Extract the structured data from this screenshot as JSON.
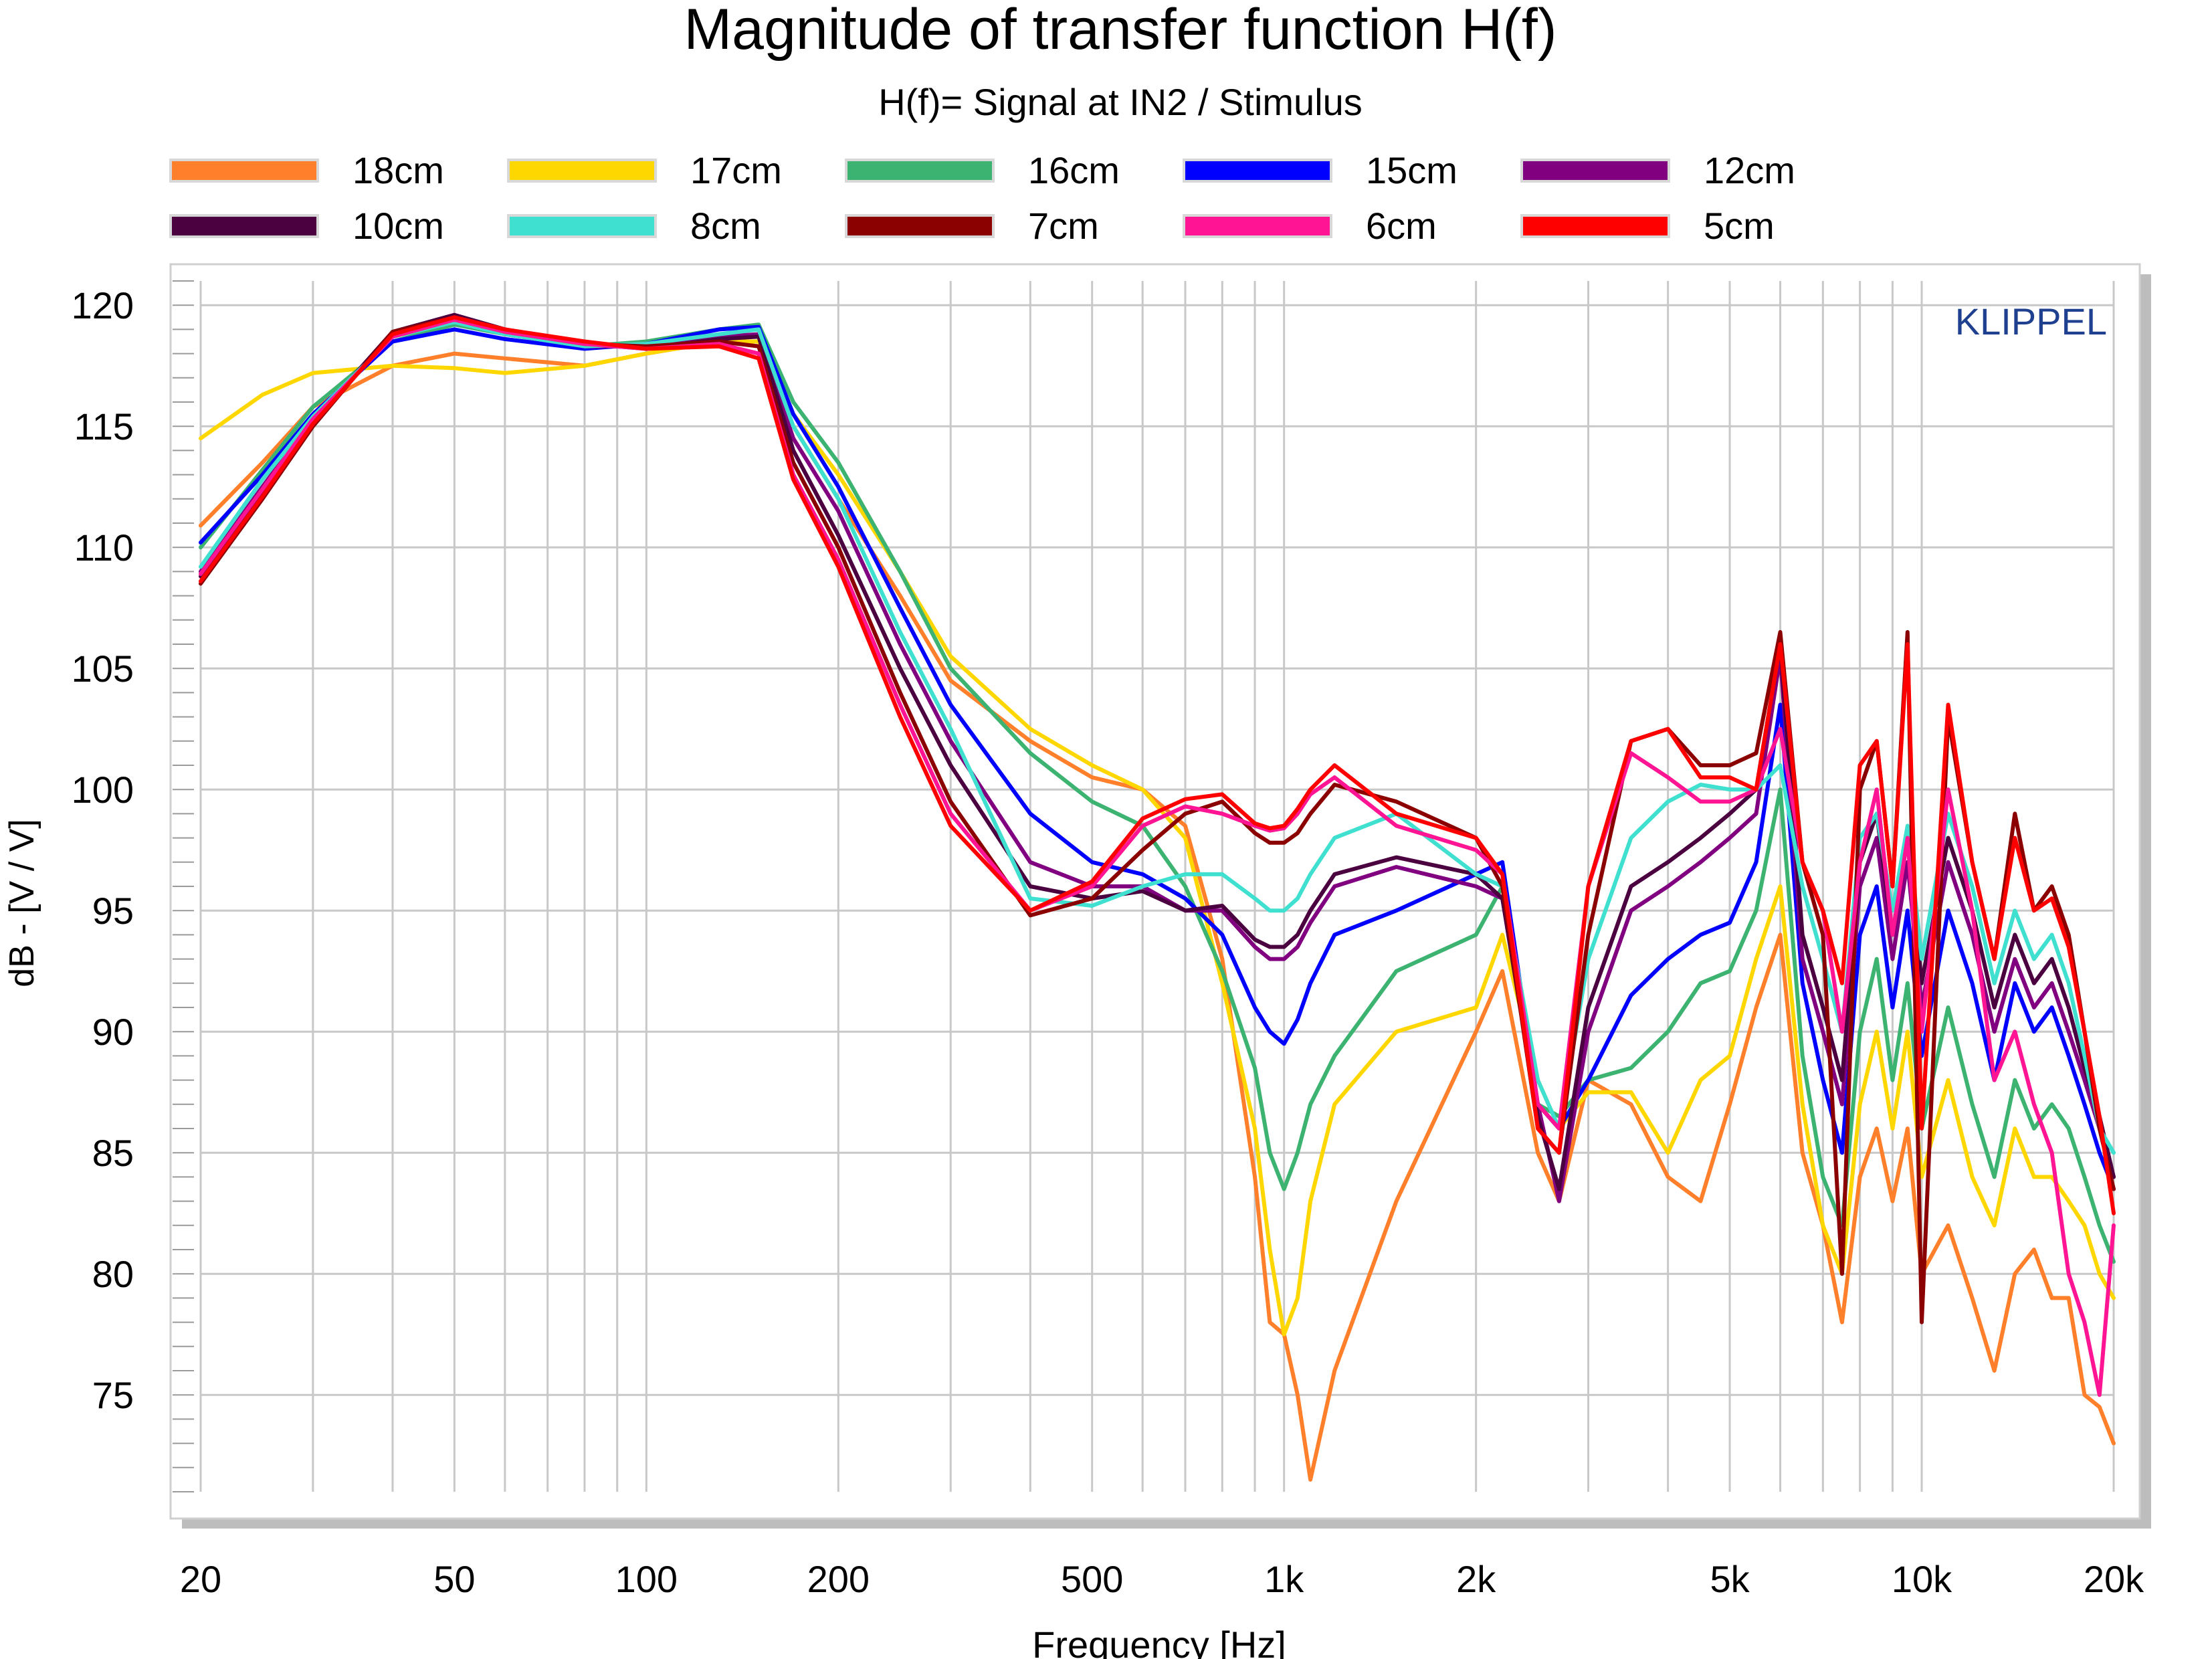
{
  "chart_data": {
    "type": "line",
    "title": "Magnitude of transfer function H(f)",
    "subtitle": "H(f)= Signal at IN2 / Stimulus",
    "watermark": "KLIPPEL",
    "xlabel": "Frequency [Hz]",
    "ylabel": "dB - [V / V]",
    "x_scale": "log",
    "xlim": [
      20,
      20000
    ],
    "ylim": [
      71,
      121
    ],
    "x_ticks": [
      20,
      50,
      100,
      200,
      500,
      1000,
      2000,
      5000,
      10000,
      20000
    ],
    "x_tick_labels": [
      "20",
      "50",
      "100",
      "200",
      "500",
      "1k",
      "2k",
      "5k",
      "10k",
      "20k"
    ],
    "y_ticks": [
      75,
      80,
      85,
      90,
      95,
      100,
      105,
      110,
      115,
      120
    ],
    "y_tick_labels": [
      "75",
      "80",
      "85",
      "90",
      "95",
      "100",
      "105",
      "110",
      "115",
      "120"
    ],
    "grid": true,
    "legend_position": "top",
    "series": [
      {
        "name": "18cm",
        "color": "#ff7f2a",
        "x": [
          20,
          25,
          30,
          40,
          50,
          60,
          80,
          100,
          130,
          150,
          170,
          200,
          250,
          300,
          400,
          500,
          600,
          700,
          800,
          900,
          950,
          1000,
          1050,
          1100,
          1200,
          1500,
          2000,
          2200,
          2500,
          2700,
          3000,
          3500,
          4000,
          4500,
          5000,
          5500,
          6000,
          6500,
          7000,
          7500,
          8000,
          8500,
          9000,
          9500,
          10000,
          11000,
          12000,
          13000,
          14000,
          15000,
          16000,
          17000,
          18000,
          19000,
          20000
        ],
        "y": [
          110.9,
          113.5,
          115.8,
          117.5,
          118.0,
          117.8,
          117.5,
          118.0,
          118.5,
          118.3,
          115.0,
          112.0,
          108.0,
          104.5,
          102.0,
          100.5,
          100.0,
          98.5,
          93.0,
          84.0,
          78.0,
          77.5,
          75.0,
          71.5,
          76.0,
          83.0,
          90.0,
          92.5,
          85.0,
          83.0,
          88.0,
          87.0,
          84.0,
          83.0,
          87.0,
          91.0,
          94.0,
          85.0,
          82.0,
          78.0,
          84.0,
          86.0,
          83.0,
          86.0,
          80.0,
          82.0,
          79.0,
          76.0,
          80.0,
          81.0,
          79.0,
          79.0,
          75.0,
          74.5,
          73.0
        ]
      },
      {
        "name": "17cm",
        "color": "#ffd700",
        "x": [
          20,
          25,
          30,
          40,
          50,
          60,
          80,
          100,
          130,
          150,
          170,
          200,
          250,
          300,
          400,
          500,
          600,
          700,
          800,
          900,
          950,
          1000,
          1050,
          1100,
          1200,
          1500,
          2000,
          2200,
          2500,
          2700,
          3000,
          3500,
          4000,
          4500,
          5000,
          5500,
          6000,
          6500,
          7000,
          7500,
          8000,
          8500,
          9000,
          9500,
          10000,
          11000,
          12000,
          13000,
          14000,
          15000,
          16000,
          17000,
          18000,
          19000,
          20000
        ],
        "y": [
          114.5,
          116.3,
          117.2,
          117.5,
          117.4,
          117.2,
          117.5,
          118.0,
          118.5,
          118.5,
          115.5,
          113.0,
          109.0,
          105.5,
          102.5,
          101.0,
          100.0,
          98.0,
          92.0,
          86.0,
          81.0,
          77.5,
          79.0,
          83.0,
          87.0,
          90.0,
          91.0,
          94.0,
          88.0,
          86.0,
          87.5,
          87.5,
          85.0,
          88.0,
          89.0,
          93.0,
          96.0,
          87.0,
          82.0,
          80.0,
          87.0,
          90.0,
          86.0,
          90.0,
          84.0,
          88.0,
          84.0,
          82.0,
          86.0,
          84.0,
          84.0,
          83.0,
          82.0,
          80.0,
          79.0
        ]
      },
      {
        "name": "16cm",
        "color": "#3cb371",
        "x": [
          20,
          25,
          30,
          40,
          50,
          60,
          80,
          100,
          130,
          150,
          170,
          200,
          250,
          300,
          400,
          500,
          600,
          700,
          800,
          900,
          950,
          1000,
          1050,
          1100,
          1200,
          1500,
          2000,
          2200,
          2500,
          2700,
          3000,
          3500,
          4000,
          4500,
          5000,
          5500,
          6000,
          6500,
          7000,
          7500,
          8000,
          8500,
          9000,
          9500,
          10000,
          11000,
          12000,
          13000,
          14000,
          15000,
          16000,
          17000,
          18000,
          19000,
          20000
        ],
        "y": [
          110.0,
          113.2,
          115.8,
          118.5,
          119.2,
          118.8,
          118.3,
          118.5,
          119.0,
          119.2,
          116.0,
          113.5,
          109.0,
          105.0,
          101.5,
          99.5,
          98.5,
          96.0,
          92.5,
          88.5,
          85.0,
          83.5,
          85.0,
          87.0,
          89.0,
          92.5,
          94.0,
          96.0,
          87.0,
          86.5,
          88.0,
          88.5,
          90.0,
          92.0,
          92.5,
          95.0,
          100.0,
          89.0,
          84.0,
          82.0,
          90.0,
          93.0,
          88.0,
          92.0,
          86.0,
          91.0,
          87.0,
          84.0,
          88.0,
          86.0,
          87.0,
          86.0,
          84.0,
          82.0,
          80.5
        ]
      },
      {
        "name": "15cm",
        "color": "#0000ff",
        "x": [
          20,
          25,
          30,
          40,
          50,
          60,
          80,
          100,
          130,
          150,
          170,
          200,
          250,
          300,
          400,
          500,
          600,
          700,
          800,
          900,
          950,
          1000,
          1050,
          1100,
          1200,
          1500,
          2000,
          2200,
          2500,
          2700,
          3000,
          3500,
          4000,
          4500,
          5000,
          5500,
          6000,
          6500,
          7000,
          7500,
          8000,
          8500,
          9000,
          9500,
          10000,
          11000,
          12000,
          13000,
          14000,
          15000,
          16000,
          17000,
          18000,
          19000,
          20000
        ],
        "y": [
          110.2,
          113.0,
          115.5,
          118.5,
          119.0,
          118.6,
          118.2,
          118.4,
          119.0,
          119.1,
          115.5,
          112.5,
          107.5,
          103.5,
          99.0,
          97.0,
          96.5,
          95.5,
          94.0,
          91.0,
          90.0,
          89.5,
          90.5,
          92.0,
          94.0,
          95.0,
          96.5,
          97.0,
          87.0,
          86.0,
          88.0,
          91.5,
          93.0,
          94.0,
          94.5,
          97.0,
          103.5,
          92.0,
          88.0,
          85.0,
          94.0,
          96.0,
          91.0,
          95.0,
          89.0,
          95.0,
          92.0,
          88.0,
          92.0,
          90.0,
          91.0,
          89.0,
          87.0,
          85.0,
          83.5
        ]
      },
      {
        "name": "12cm",
        "color": "#800080",
        "x": [
          20,
          25,
          30,
          40,
          50,
          60,
          80,
          100,
          130,
          150,
          170,
          200,
          250,
          300,
          400,
          500,
          600,
          700,
          800,
          900,
          950,
          1000,
          1050,
          1100,
          1200,
          1500,
          2000,
          2200,
          2500,
          2700,
          3000,
          3500,
          4000,
          4500,
          5000,
          5500,
          6000,
          6500,
          7000,
          7500,
          8000,
          8500,
          9000,
          9500,
          10000,
          11000,
          12000,
          13000,
          14000,
          15000,
          16000,
          17000,
          18000,
          19000,
          20000
        ],
        "y": [
          109.0,
          112.5,
          115.3,
          118.8,
          119.4,
          118.8,
          118.3,
          118.3,
          118.7,
          118.8,
          114.5,
          111.5,
          106.0,
          102.0,
          97.0,
          96.0,
          96.0,
          95.0,
          95.0,
          93.5,
          93.0,
          93.0,
          93.5,
          94.5,
          96.0,
          96.8,
          96.0,
          95.5,
          87.0,
          83.0,
          90.0,
          95.0,
          96.0,
          97.0,
          98.0,
          99.0,
          105.5,
          93.0,
          90.0,
          87.0,
          96.0,
          98.0,
          93.0,
          97.0,
          91.0,
          97.0,
          94.0,
          90.0,
          93.0,
          91.0,
          92.0,
          90.0,
          88.0,
          86.0,
          84.0
        ]
      },
      {
        "name": "10cm",
        "color": "#4b0040",
        "x": [
          20,
          25,
          30,
          40,
          50,
          60,
          80,
          100,
          130,
          150,
          170,
          200,
          250,
          300,
          400,
          500,
          600,
          700,
          800,
          900,
          950,
          1000,
          1050,
          1100,
          1200,
          1500,
          2000,
          2200,
          2500,
          2700,
          3000,
          3500,
          4000,
          4500,
          5000,
          5500,
          6000,
          6500,
          7000,
          7500,
          8000,
          8500,
          9000,
          9500,
          10000,
          11000,
          12000,
          13000,
          14000,
          15000,
          16000,
          17000,
          18000,
          19000,
          20000
        ],
        "y": [
          108.8,
          112.3,
          115.2,
          118.9,
          119.6,
          119.0,
          118.4,
          118.2,
          118.6,
          118.7,
          114.0,
          110.5,
          105.0,
          101.0,
          96.0,
          95.5,
          95.8,
          95.0,
          95.2,
          93.8,
          93.5,
          93.5,
          94.0,
          95.0,
          96.5,
          97.2,
          96.5,
          95.5,
          86.5,
          83.5,
          91.0,
          96.0,
          97.0,
          98.0,
          99.0,
          100.0,
          106.0,
          94.0,
          91.0,
          88.0,
          97.0,
          99.0,
          94.0,
          98.0,
          92.0,
          98.0,
          95.0,
          91.0,
          94.0,
          92.0,
          93.0,
          91.0,
          88.5,
          86.5,
          84.0
        ]
      },
      {
        "name": "8cm",
        "color": "#40e0d0",
        "x": [
          20,
          25,
          30,
          40,
          50,
          60,
          80,
          100,
          130,
          150,
          170,
          200,
          250,
          300,
          400,
          500,
          600,
          700,
          800,
          900,
          950,
          1000,
          1050,
          1100,
          1200,
          1500,
          2000,
          2200,
          2500,
          2700,
          3000,
          3500,
          4000,
          4500,
          5000,
          5500,
          6000,
          6500,
          7000,
          7500,
          8000,
          8500,
          9000,
          9500,
          10000,
          11000,
          12000,
          13000,
          14000,
          15000,
          16000,
          17000,
          18000,
          19000,
          20000
        ],
        "y": [
          109.2,
          112.8,
          115.4,
          118.7,
          119.3,
          118.8,
          118.3,
          118.4,
          118.8,
          119.0,
          115.0,
          112.0,
          106.5,
          102.5,
          95.5,
          95.2,
          96.0,
          96.5,
          96.5,
          95.5,
          95.0,
          95.0,
          95.5,
          96.5,
          98.0,
          99.0,
          96.5,
          96.0,
          88.0,
          86.0,
          93.0,
          98.0,
          99.5,
          100.2,
          100.0,
          100.0,
          101.0,
          96.0,
          93.0,
          90.0,
          98.0,
          99.0,
          95.0,
          98.5,
          93.0,
          99.0,
          96.0,
          92.0,
          95.0,
          93.0,
          94.0,
          92.0,
          89.0,
          86.0,
          85.0
        ]
      },
      {
        "name": "7cm",
        "color": "#8b0000",
        "x": [
          20,
          25,
          30,
          40,
          50,
          60,
          80,
          100,
          130,
          150,
          170,
          200,
          250,
          300,
          400,
          500,
          600,
          700,
          800,
          900,
          950,
          1000,
          1050,
          1100,
          1200,
          1500,
          2000,
          2200,
          2500,
          2700,
          3000,
          3500,
          4000,
          4500,
          5000,
          5500,
          6000,
          6500,
          7000,
          7500,
          8000,
          8500,
          9000,
          9500,
          10000,
          11000,
          12000,
          13000,
          14000,
          15000,
          16000,
          17000,
          18000,
          19000,
          20000
        ],
        "y": [
          108.5,
          112.0,
          115.0,
          118.9,
          119.5,
          118.9,
          118.4,
          118.3,
          118.5,
          118.3,
          113.5,
          110.0,
          104.0,
          99.5,
          94.8,
          95.5,
          97.5,
          99.0,
          99.5,
          98.2,
          97.8,
          97.8,
          98.2,
          99.0,
          100.2,
          99.5,
          98.0,
          96.0,
          86.0,
          85.0,
          94.0,
          102.0,
          102.5,
          101.0,
          101.0,
          101.5,
          106.5,
          97.0,
          94.0,
          80.0,
          100.0,
          102.0,
          96.0,
          106.5,
          78.0,
          103.0,
          97.0,
          93.0,
          99.0,
          95.0,
          96.0,
          94.0,
          90.0,
          86.0,
          83.5
        ]
      },
      {
        "name": "6cm",
        "color": "#ff1493",
        "x": [
          20,
          25,
          30,
          40,
          50,
          60,
          80,
          100,
          130,
          150,
          170,
          200,
          250,
          300,
          400,
          500,
          600,
          700,
          800,
          900,
          950,
          1000,
          1050,
          1100,
          1200,
          1500,
          2000,
          2200,
          2500,
          2700,
          3000,
          3500,
          4000,
          4500,
          5000,
          5500,
          6000,
          6500,
          7000,
          7500,
          8000,
          8500,
          9000,
          9500,
          10000,
          11000,
          12000,
          13000,
          14000,
          15000,
          16000,
          17000,
          18000,
          19000,
          20000
        ],
        "y": [
          108.9,
          112.4,
          115.3,
          118.7,
          119.4,
          118.9,
          118.4,
          118.2,
          118.4,
          118.0,
          113.0,
          109.5,
          103.5,
          99.0,
          95.0,
          96.0,
          98.5,
          99.3,
          99.0,
          98.5,
          98.3,
          98.4,
          99.0,
          99.8,
          100.5,
          98.5,
          97.5,
          96.5,
          87.0,
          86.0,
          96.0,
          101.5,
          100.5,
          99.5,
          99.5,
          100.0,
          102.5,
          97.0,
          95.0,
          90.0,
          97.0,
          100.0,
          94.0,
          98.0,
          90.0,
          100.0,
          95.0,
          88.0,
          90.0,
          87.0,
          85.0,
          80.0,
          78.0,
          75.0,
          82.0
        ]
      },
      {
        "name": "5cm",
        "color": "#ff0000",
        "x": [
          20,
          25,
          30,
          40,
          50,
          60,
          80,
          100,
          130,
          150,
          170,
          200,
          250,
          300,
          400,
          500,
          600,
          700,
          800,
          900,
          950,
          1000,
          1050,
          1100,
          1200,
          1500,
          2000,
          2200,
          2500,
          2700,
          3000,
          3500,
          4000,
          4500,
          5000,
          5500,
          6000,
          6500,
          7000,
          7500,
          8000,
          8500,
          9000,
          9500,
          10000,
          11000,
          12000,
          13000,
          14000,
          15000,
          16000,
          17000,
          18000,
          19000,
          20000
        ],
        "y": [
          108.6,
          112.1,
          115.1,
          118.8,
          119.5,
          119.0,
          118.5,
          118.2,
          118.3,
          117.8,
          112.8,
          109.2,
          103.0,
          98.5,
          95.0,
          96.2,
          98.8,
          99.6,
          99.8,
          98.6,
          98.4,
          98.5,
          99.2,
          100.0,
          101.0,
          99.0,
          98.0,
          96.5,
          86.0,
          85.0,
          96.0,
          102.0,
          102.5,
          100.5,
          100.5,
          100.0,
          106.0,
          97.0,
          95.0,
          92.0,
          101.0,
          102.0,
          96.0,
          106.0,
          86.0,
          103.5,
          97.0,
          93.0,
          98.0,
          95.0,
          95.5,
          93.5,
          90.0,
          86.5,
          82.5
        ]
      }
    ]
  }
}
